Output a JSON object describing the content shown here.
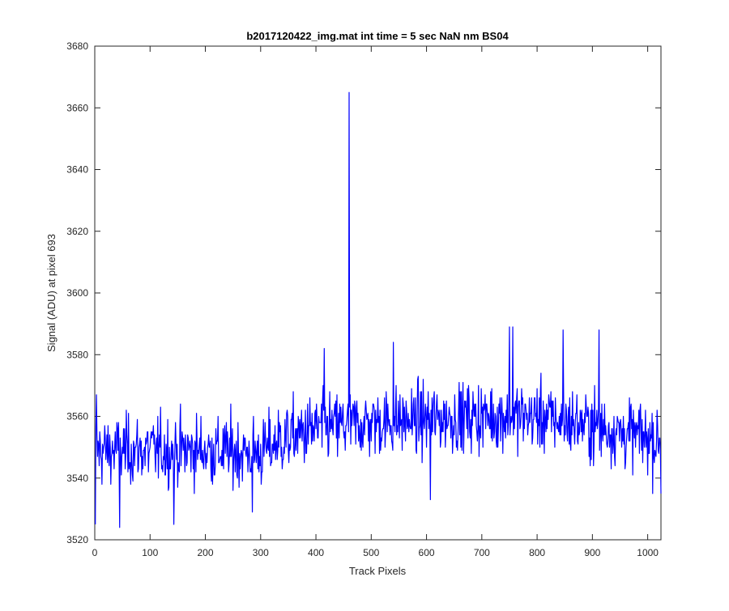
{
  "chart_data": {
    "type": "line",
    "title": "b2017120422_img.mat int time = 5 sec  NaN nm BS04",
    "xlabel": "Track Pixels",
    "ylabel": "Signal (ADU) at pixel 693",
    "xlim": [
      0,
      1024
    ],
    "ylim": [
      3520,
      3680
    ],
    "xticks": [
      0,
      100,
      200,
      300,
      400,
      500,
      600,
      700,
      800,
      900,
      1000
    ],
    "yticks": [
      3520,
      3540,
      3560,
      3580,
      3600,
      3620,
      3640,
      3660,
      3680
    ],
    "grid": false,
    "series": [
      {
        "color": "#0000ff",
        "x_start": 1,
        "x_step": 1,
        "noise_note": "dense noisy trace; mean ~3549 for x<330, ~3556 for 330-520, ~3560 for 520-900, ~3553 for x>900",
        "baseline": [
          [
            1,
            3549
          ],
          [
            100,
            3549
          ],
          [
            200,
            3549
          ],
          [
            300,
            3548
          ],
          [
            330,
            3552
          ],
          [
            400,
            3556
          ],
          [
            500,
            3558
          ],
          [
            600,
            3559
          ],
          [
            700,
            3560
          ],
          [
            800,
            3560
          ],
          [
            900,
            3557
          ],
          [
            1024,
            3552
          ]
        ],
        "notable_points": [
          [
            1,
            3525
          ],
          [
            3,
            3567
          ],
          [
            45,
            3524
          ],
          [
            143,
            3525
          ],
          [
            285,
            3529
          ],
          [
            285,
            3529
          ],
          [
            415,
            3582
          ],
          [
            460,
            3665
          ],
          [
            540,
            3584
          ],
          [
            607,
            3533
          ],
          [
            750,
            3589
          ],
          [
            756,
            3589
          ],
          [
            847,
            3588
          ],
          [
            912,
            3588
          ],
          [
            1024,
            3535
          ]
        ]
      }
    ]
  }
}
